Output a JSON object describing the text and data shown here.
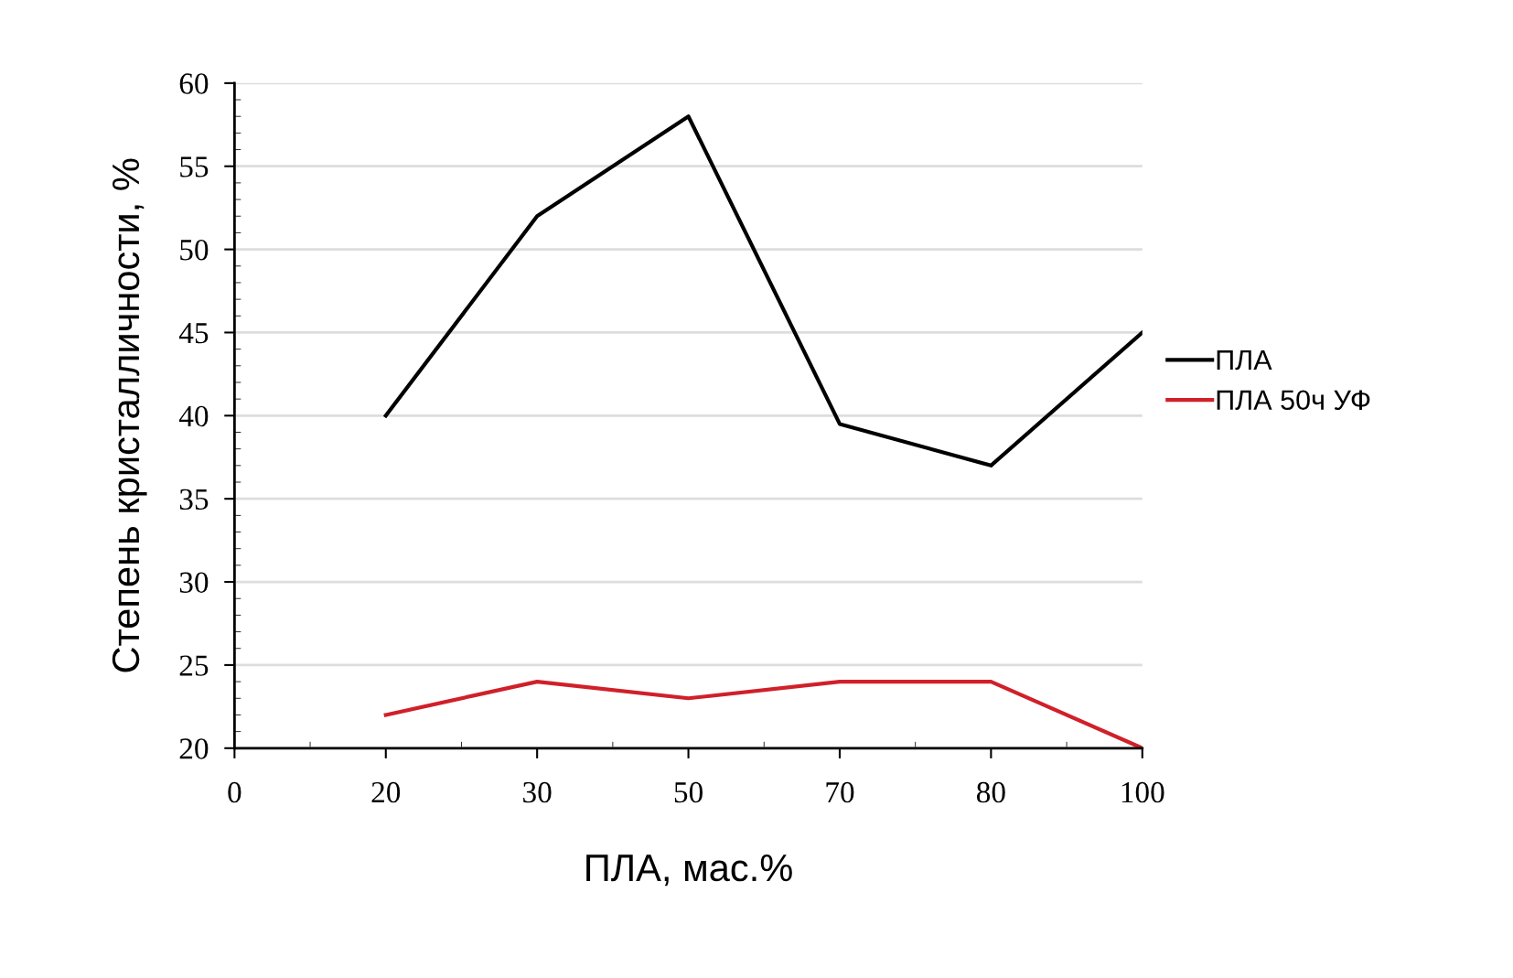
{
  "chart_data": {
    "type": "line",
    "xlabel": "ПЛА, мас.%",
    "ylabel": "Степень кристалличности, %",
    "categories": [
      "0",
      "20",
      "30",
      "50",
      "70",
      "80",
      "100"
    ],
    "series": [
      {
        "name": "ПЛА",
        "color": "#000000",
        "values": [
          null,
          40,
          52,
          58,
          39.5,
          37,
          45
        ]
      },
      {
        "name": "ПЛА 50ч УФ",
        "color": "#d0202a",
        "values": [
          null,
          22,
          24,
          23,
          24,
          24,
          20
        ]
      }
    ],
    "ylim": [
      20,
      60
    ],
    "yticks": [
      20,
      25,
      30,
      35,
      40,
      45,
      50,
      55,
      60
    ],
    "grid": "y",
    "legend": "right",
    "marker": "none",
    "line_style": "solid"
  }
}
